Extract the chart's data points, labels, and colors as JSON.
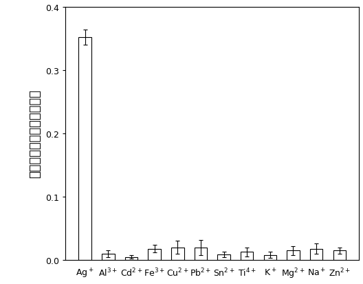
{
  "categories": [
    "Ag$^+$",
    "Al$^{3+}$",
    "Cd$^{2+}$",
    "Fe$^{3+}$",
    "Cu$^{2+}$",
    "Pb$^{2+}$",
    "Sn$^{2+}$",
    "Ti$^{4+}$",
    "K$^+$",
    "Mg$^{2+}$",
    "Na$^+$",
    "Zn$^{2+}$"
  ],
  "values": [
    0.352,
    0.01,
    0.005,
    0.018,
    0.02,
    0.02,
    0.009,
    0.013,
    0.008,
    0.015,
    0.018,
    0.015
  ],
  "errors": [
    0.012,
    0.005,
    0.003,
    0.006,
    0.01,
    0.012,
    0.004,
    0.007,
    0.005,
    0.007,
    0.008,
    0.005
  ],
  "bar_color": "#ffffff",
  "bar_edgecolor": "#000000",
  "ylabel_chars": [
    "荧",
    "光",
    "强",
    "度",
    "差",
    "値",
    "除",
    "以",
    "原",
    "始",
    "荧",
    "光"
  ],
  "ylim": [
    0,
    0.4
  ],
  "yticks": [
    0.0,
    0.1,
    0.2,
    0.3,
    0.4
  ],
  "bar_width": 0.55,
  "tick_fontsize": 9,
  "ylabel_fontsize": 13,
  "figure_width": 5.28,
  "figure_height": 4.14,
  "dpi": 100,
  "background_color": "#ffffff"
}
